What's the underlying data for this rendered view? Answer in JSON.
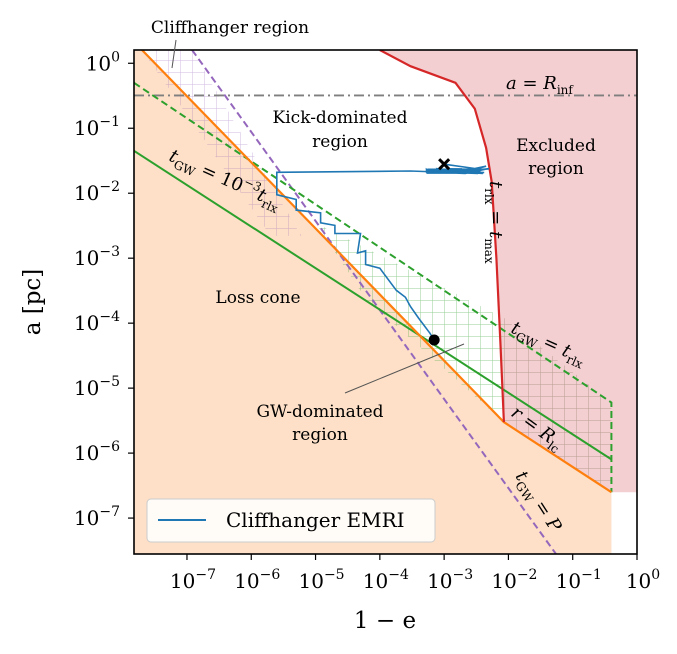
{
  "chart_data": {
    "type": "line",
    "x_scale": "log",
    "y_scale": "log",
    "xlim": [
      1.5e-08,
      1
    ],
    "ylim": [
      2.8e-08,
      1.6
    ],
    "xlabel": "1 − e",
    "ylabel": "a [pc]",
    "x_ticks": [
      {
        "value": 1e-07,
        "base": "10",
        "exp": "−7"
      },
      {
        "value": 1e-06,
        "base": "10",
        "exp": "−6"
      },
      {
        "value": 1e-05,
        "base": "10",
        "exp": "−5"
      },
      {
        "value": 0.0001,
        "base": "10",
        "exp": "−4"
      },
      {
        "value": 0.001,
        "base": "10",
        "exp": "−3"
      },
      {
        "value": 0.01,
        "base": "10",
        "exp": "−2"
      },
      {
        "value": 0.1,
        "base": "10",
        "exp": "−1"
      },
      {
        "value": 1,
        "base": "10",
        "exp": "0"
      }
    ],
    "y_ticks": [
      {
        "value": 1,
        "base": "10",
        "exp": "0"
      },
      {
        "value": 0.1,
        "base": "10",
        "exp": "−1"
      },
      {
        "value": 0.01,
        "base": "10",
        "exp": "−2"
      },
      {
        "value": 0.001,
        "base": "10",
        "exp": "−3"
      },
      {
        "value": 0.0001,
        "base": "10",
        "exp": "−4"
      },
      {
        "value": 1e-05,
        "base": "10",
        "exp": "−5"
      },
      {
        "value": 1e-06,
        "base": "10",
        "exp": "−6"
      },
      {
        "value": 1e-07,
        "base": "10",
        "exp": "−7"
      }
    ],
    "region_labels": {
      "kick_dominated": [
        "Kick-dominated",
        "region"
      ],
      "excluded": [
        "Excluded",
        "region"
      ],
      "loss_cone": [
        "Loss cone"
      ],
      "gw_dominated": [
        "GW-dominated",
        "region"
      ],
      "cliffhanger": [
        "Cliffhanger region"
      ]
    },
    "curve_labels": {
      "r_inf": {
        "main": "a = R",
        "sub": "inf"
      },
      "t_rlx_eq_t_max": {
        "t1": "t",
        "s1": "rlx",
        "eq": " = ",
        "t2": "t",
        "s2": "max"
      },
      "t_gw_eq_t_rlx": {
        "t1": "t",
        "s1": "GW",
        "eq": " = ",
        "t2": "t",
        "s2": "rlx"
      },
      "t_gw_eq_1e3_t_rlx": {
        "t1": "t",
        "s1": "GW",
        "eq": " = 10",
        "sup": "−3",
        "t2": "t",
        "s2": "rlx"
      },
      "r_eq_r_lc": {
        "t1": "r",
        "eq": " = ",
        "t2": "R",
        "s2": "lc"
      },
      "t_gw_eq_p": {
        "t1": "t",
        "s1": "GW",
        "eq": " = ",
        "t2": "P"
      }
    },
    "legend": {
      "label": "Cliffhanger EMRI",
      "color": "#1f77b4",
      "position": "bottom-left"
    },
    "colors": {
      "excluded_fill": "#f4cfd1",
      "loss_cone_fill": "#fde0c7",
      "orange": "#ff7f0e",
      "red": "#d62728",
      "green": "#2ca02c",
      "purple": "#9467bd",
      "gray": "#7f7f7f",
      "blue": "#1f77b4"
    },
    "series": [
      {
        "name": "t_rlx = t_max",
        "style": "solid red",
        "points": [
          [
            0.0001,
            1.6
          ],
          [
            0.0003,
            0.9
          ],
          [
            0.0015,
            0.5
          ],
          [
            0.003,
            0.2
          ],
          [
            0.0045,
            0.05
          ],
          [
            0.0055,
            0.015
          ],
          [
            0.0065,
            0.001
          ],
          [
            0.0075,
            5e-05
          ],
          [
            0.0085,
            3e-06
          ]
        ]
      },
      {
        "name": "t_GW = P",
        "style": "dashed purple",
        "points": [
          [
            1.2e-07,
            1.6
          ],
          [
            0.055,
            2.8e-08
          ]
        ]
      },
      {
        "name": "loss cone boundary",
        "style": "solid orange",
        "points": [
          [
            2e-08,
            1.6
          ],
          [
            0.0085,
            3e-06
          ],
          [
            0.4,
            2.5e-07
          ]
        ]
      },
      {
        "name": "t_GW = 10^-3 t_rlx",
        "style": "solid green",
        "points": [
          [
            1.5e-08,
            0.045
          ],
          [
            0.4,
            8e-07
          ]
        ]
      },
      {
        "name": "t_GW = t_rlx",
        "style": "dashed green",
        "points": [
          [
            1.5e-08,
            0.5
          ],
          [
            0.4,
            6e-06
          ]
        ]
      },
      {
        "name": "a = R_inf",
        "style": "dashdot gray",
        "y": 0.32
      }
    ],
    "emri_track": {
      "name": "Cliffhanger EMRI",
      "points": [
        [
          0.001,
          0.028
        ],
        [
          0.003,
          0.024
        ],
        [
          0.0045,
          0.026
        ],
        [
          0.002,
          0.021
        ],
        [
          0.005,
          0.024
        ],
        [
          0.0003,
          0.022
        ],
        [
          2.5e-06,
          0.021
        ],
        [
          2.5e-06,
          0.0095
        ],
        [
          5e-06,
          0.008
        ],
        [
          5e-06,
          0.0055
        ],
        [
          1.2e-05,
          0.005
        ],
        [
          1.2e-05,
          0.0035
        ],
        [
          2e-05,
          0.0032
        ],
        [
          2e-05,
          0.0024
        ],
        [
          5e-05,
          0.0024
        ],
        [
          4.5e-05,
          0.0012
        ],
        [
          6e-05,
          0.0013
        ],
        [
          6e-05,
          0.0008
        ],
        [
          0.0001,
          0.0007
        ],
        [
          0.00018,
          0.00032
        ],
        [
          0.00025,
          0.00025
        ],
        [
          0.0003,
          0.00018
        ],
        [
          0.0004,
          0.00012
        ],
        [
          0.0006,
          7e-05
        ],
        [
          0.0007,
          5.5e-05
        ]
      ],
      "start_marker": {
        "x": 0.001,
        "y": 0.028,
        "symbol": "x"
      },
      "end_marker": {
        "x": 0.0007,
        "y": 5.5e-05,
        "symbol": "dot"
      }
    }
  }
}
